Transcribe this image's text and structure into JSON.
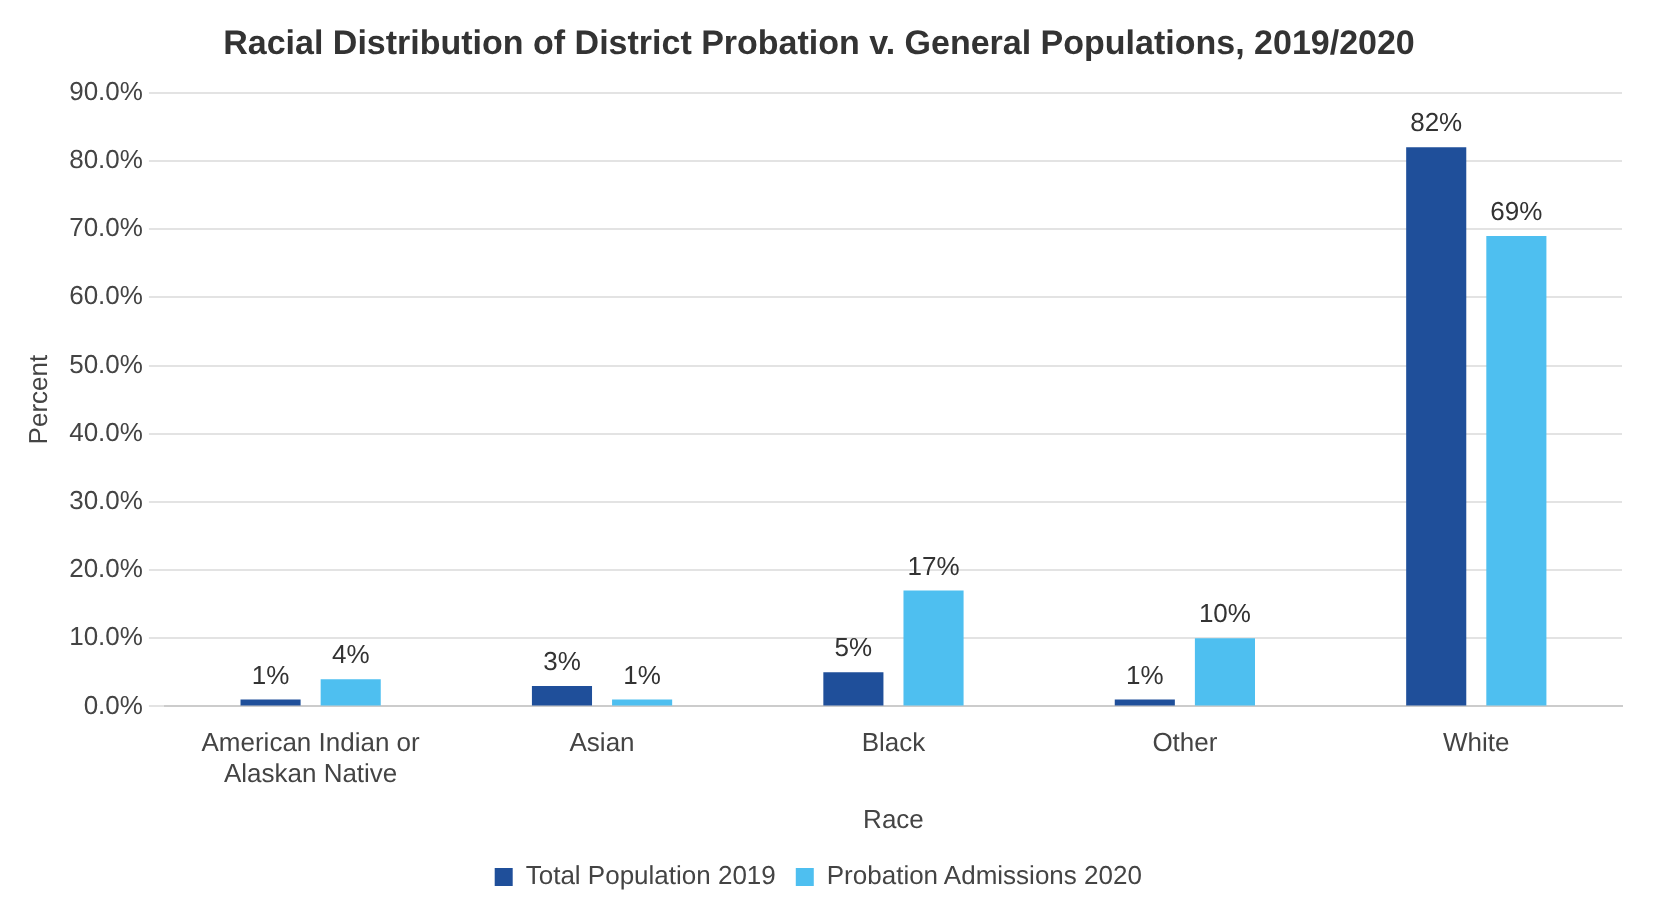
{
  "chart_data": {
    "type": "bar",
    "title": "Racial Distribution of District Probation v. General Populations, 2019/2020",
    "xlabel": "Race",
    "ylabel": "Percent",
    "categories": [
      [
        "American Indian or",
        "Alaskan Native"
      ],
      "Asian",
      "Black",
      "Other",
      "White"
    ],
    "series": [
      {
        "name": "Total Population 2019",
        "color": "#1f4f9a",
        "values": [
          1,
          3,
          5,
          1,
          82
        ],
        "value_labels": [
          "1%",
          "3%",
          "5%",
          "1%",
          "82%"
        ]
      },
      {
        "name": "Probation Admissions 2020",
        "color": "#4ebff0",
        "values": [
          4,
          1,
          17,
          10,
          69
        ],
        "value_labels": [
          "4%",
          "1%",
          "17%",
          "10%",
          "69%"
        ]
      }
    ],
    "ylim": [
      0,
      90
    ],
    "yticks": [
      {
        "value": 0,
        "label": "0.0%"
      },
      {
        "value": 10,
        "label": "10.0%"
      },
      {
        "value": 20,
        "label": "20.0%"
      },
      {
        "value": 30,
        "label": "30.0%"
      },
      {
        "value": 40,
        "label": "40.0%"
      },
      {
        "value": 50,
        "label": "50.0%"
      },
      {
        "value": 60,
        "label": "60.0%"
      },
      {
        "value": 70,
        "label": "70.0%"
      },
      {
        "value": 80,
        "label": "80.0%"
      },
      {
        "value": 90,
        "label": "90.0%"
      }
    ],
    "grid": "y",
    "legend": "bottom"
  }
}
